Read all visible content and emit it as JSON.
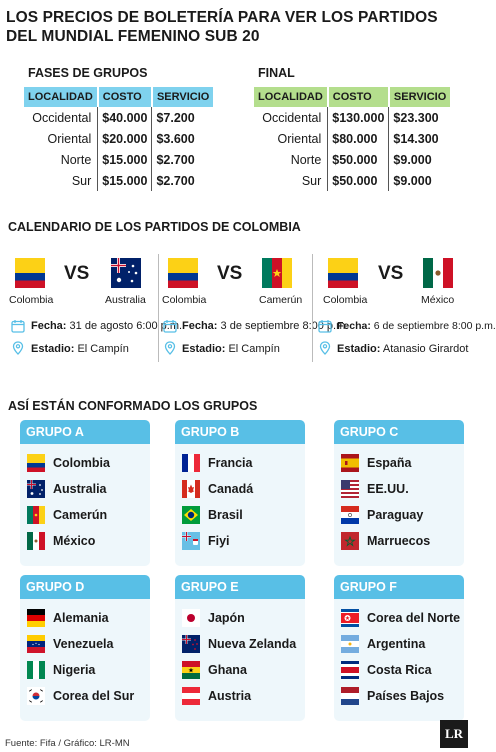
{
  "title": "LOS PRECIOS DE BOLETERÍA PARA VER LOS PARTIDOS DEL MUNDIAL FEMENINO SUB 20",
  "prices": {
    "groups": {
      "label": "FASES DE GRUPOS",
      "headers": [
        "LOCALIDAD",
        "COSTO",
        "SERVICIO"
      ],
      "rows": [
        {
          "localidad": "Occidental",
          "costo": "$40.000",
          "servicio": "$7.200"
        },
        {
          "localidad": "Oriental",
          "costo": "$20.000",
          "servicio": "$3.600"
        },
        {
          "localidad": "Norte",
          "costo": "$15.000",
          "servicio": "$2.700"
        },
        {
          "localidad": "Sur",
          "costo": "$15.000",
          "servicio": "$2.700"
        }
      ],
      "header_color": "#7fd2ee"
    },
    "final": {
      "label": "FINAL",
      "headers": [
        "LOCALIDAD",
        "COSTO",
        "SERVICIO"
      ],
      "rows": [
        {
          "localidad": "Occidental",
          "costo": "$130.000",
          "servicio": "$23.300"
        },
        {
          "localidad": "Oriental",
          "costo": "$80.000",
          "servicio": "$14.300"
        },
        {
          "localidad": "Norte",
          "costo": "$50.000",
          "servicio": "$9.000"
        },
        {
          "localidad": "Sur",
          "costo": "$50.000",
          "servicio": "$9.000"
        }
      ],
      "header_color": "#b4de8d"
    }
  },
  "calendar": {
    "label": "CALENDARIO DE LOS PARTIDOS DE COLOMBIA",
    "matches": [
      {
        "home": "Colombia",
        "away": "Australia",
        "vs": "VS",
        "fecha_label": "Fecha:",
        "fecha": "31 de agosto 6:00 p.m.",
        "estadio_label": "Estadio:",
        "estadio": "El Campín"
      },
      {
        "home": "Colombia",
        "away": "Camerún",
        "vs": "VS",
        "fecha_label": "Fecha:",
        "fecha": "3 de septiembre 8:00 p.m.",
        "estadio_label": "Estadio:",
        "estadio": "El Campín"
      },
      {
        "home": "Colombia",
        "away": "México",
        "vs": "VS",
        "fecha_label": "Fecha:",
        "fecha": "6 de septiembre 8:00 p.m.",
        "estadio_label": "Estadio:",
        "estadio": "Atanasio Girardot"
      }
    ]
  },
  "groups": {
    "label": "ASÍ ESTÁN CONFORMADO LOS GRUPOS",
    "header_color": "#58bfe6",
    "items": [
      {
        "name": "GRUPO A",
        "teams": [
          "Colombia",
          "Australia",
          "Camerún",
          "México"
        ]
      },
      {
        "name": "GRUPO B",
        "teams": [
          "Francia",
          "Canadá",
          "Brasil",
          "Fiyi"
        ]
      },
      {
        "name": "GRUPO C",
        "teams": [
          "España",
          "EE.UU.",
          "Paraguay",
          "Marruecos"
        ]
      },
      {
        "name": "GRUPO D",
        "teams": [
          "Alemania",
          "Venezuela",
          "Nigeria",
          "Corea del Sur"
        ]
      },
      {
        "name": "GRUPO E",
        "teams": [
          "Japón",
          "Nueva Zelanda",
          "Ghana",
          "Austria"
        ]
      },
      {
        "name": "GRUPO F",
        "teams": [
          "Corea del Norte",
          "Argentina",
          "Costa Rica",
          "Países Bajos"
        ]
      }
    ]
  },
  "footer": "Fuente: Fifa / Gráfico: LR-MN",
  "logo": "LR"
}
